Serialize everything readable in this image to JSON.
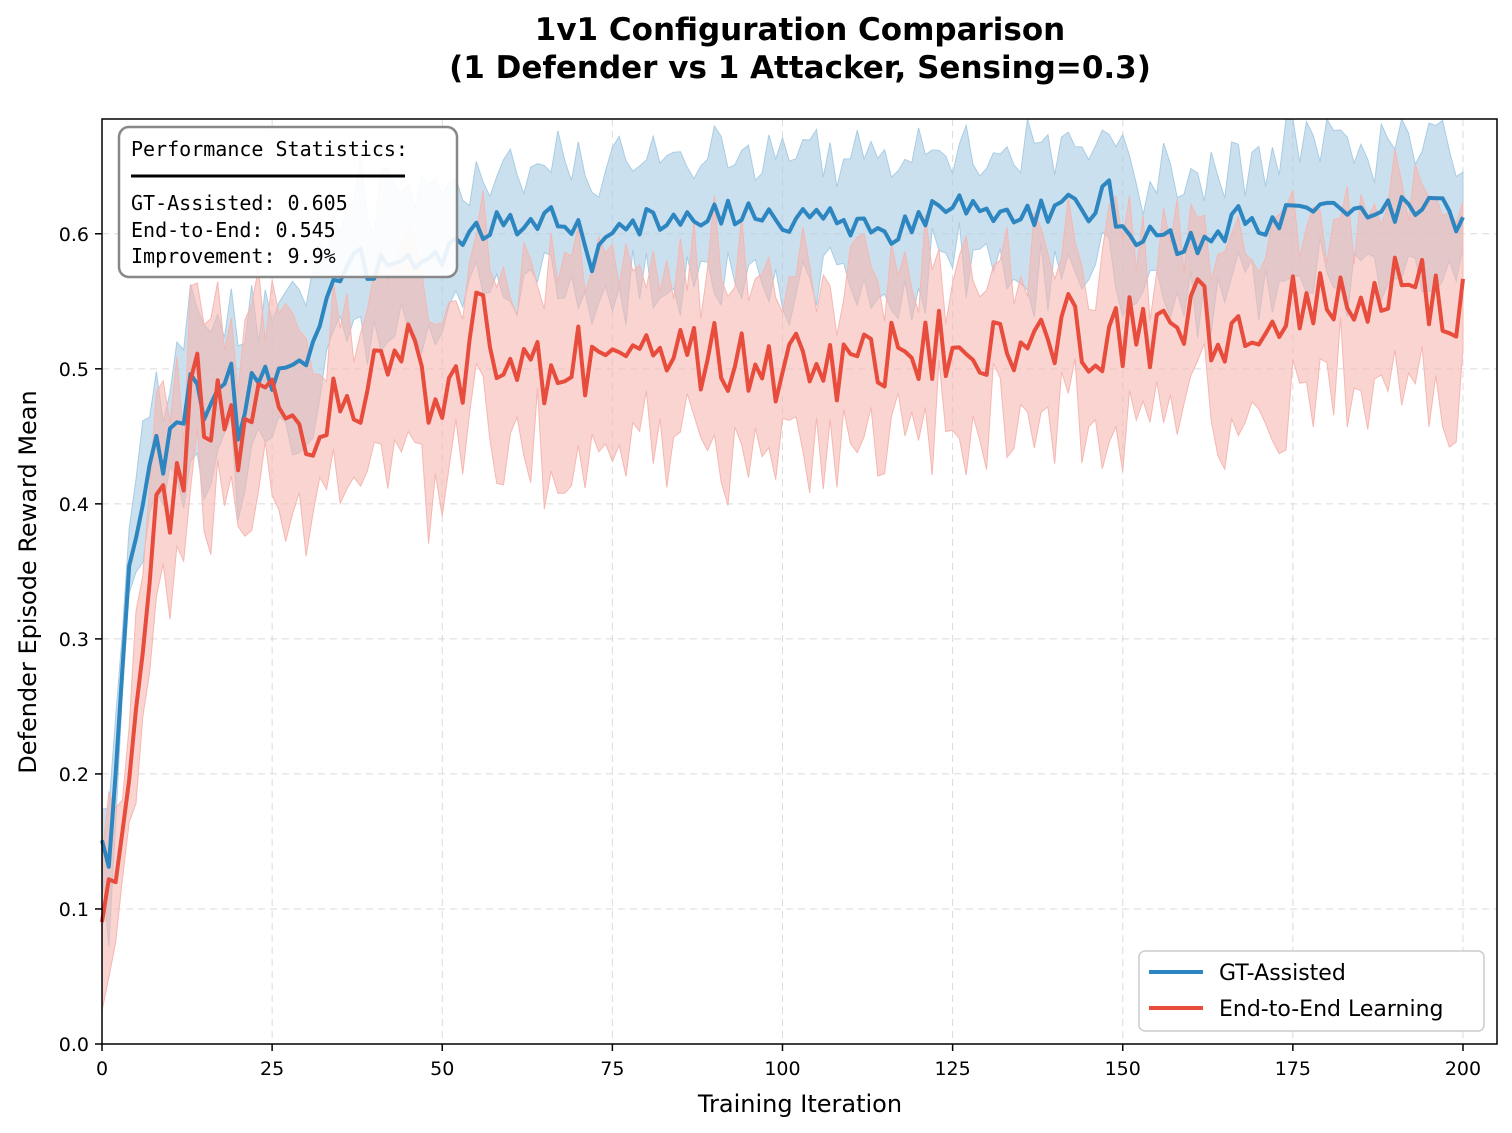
{
  "chart_data": {
    "type": "line",
    "title_line1": "1v1 Configuration Comparison",
    "title_line2": "(1 Defender vs 1 Attacker, Sensing=0.3)",
    "xlabel": "Training Iteration",
    "ylabel": "Defender Episode Reward Mean",
    "xlim": [
      0,
      205
    ],
    "ylim": [
      0,
      0.685
    ],
    "xticks": [
      0,
      25,
      50,
      75,
      100,
      125,
      150,
      175,
      200
    ],
    "yticks": [
      0.0,
      0.1,
      0.2,
      0.3,
      0.4,
      0.5,
      0.6
    ],
    "ytick_labels": [
      "0.0",
      "0.1",
      "0.2",
      "0.3",
      "0.4",
      "0.5",
      "0.6"
    ],
    "grid": true,
    "legend_position": "lower-right",
    "stats_box": {
      "header": "Performance Statistics:",
      "line1": "GT-Assisted: 0.605",
      "line2": "End-to-End: 0.545",
      "line3": "Improvement: 9.9%"
    },
    "series": [
      {
        "name": "GT-Assisted",
        "color": "#2e86c1",
        "band_color": "#a9cce3",
        "keypoints": [
          [
            0,
            0.155
          ],
          [
            1,
            0.13
          ],
          [
            2,
            0.2
          ],
          [
            4,
            0.35
          ],
          [
            6,
            0.4
          ],
          [
            8,
            0.455
          ],
          [
            9,
            0.43
          ],
          [
            10,
            0.46
          ],
          [
            12,
            0.47
          ],
          [
            13,
            0.5
          ],
          [
            15,
            0.47
          ],
          [
            17,
            0.48
          ],
          [
            19,
            0.5
          ],
          [
            20,
            0.45
          ],
          [
            22,
            0.5
          ],
          [
            25,
            0.49
          ],
          [
            28,
            0.5
          ],
          [
            30,
            0.5
          ],
          [
            33,
            0.555
          ],
          [
            35,
            0.56
          ],
          [
            38,
            0.585
          ],
          [
            40,
            0.57
          ],
          [
            43,
            0.585
          ],
          [
            46,
            0.575
          ],
          [
            48,
            0.59
          ],
          [
            50,
            0.585
          ],
          [
            53,
            0.6
          ],
          [
            55,
            0.6
          ],
          [
            57,
            0.61
          ],
          [
            60,
            0.61
          ],
          [
            63,
            0.605
          ],
          [
            65,
            0.61
          ],
          [
            70,
            0.605
          ],
          [
            72,
            0.58
          ],
          [
            75,
            0.6
          ],
          [
            80,
            0.61
          ],
          [
            85,
            0.61
          ],
          [
            90,
            0.615
          ],
          [
            95,
            0.615
          ],
          [
            100,
            0.61
          ],
          [
            105,
            0.615
          ],
          [
            110,
            0.605
          ],
          [
            115,
            0.6
          ],
          [
            120,
            0.615
          ],
          [
            125,
            0.62
          ],
          [
            130,
            0.61
          ],
          [
            135,
            0.615
          ],
          [
            140,
            0.62
          ],
          [
            145,
            0.615
          ],
          [
            148,
            0.63
          ],
          [
            150,
            0.6
          ],
          [
            153,
            0.59
          ],
          [
            155,
            0.6
          ],
          [
            160,
            0.59
          ],
          [
            163,
            0.595
          ],
          [
            167,
            0.61
          ],
          [
            170,
            0.605
          ],
          [
            175,
            0.615
          ],
          [
            180,
            0.615
          ],
          [
            185,
            0.61
          ],
          [
            190,
            0.615
          ],
          [
            195,
            0.625
          ],
          [
            198,
            0.615
          ],
          [
            200,
            0.605
          ]
        ],
        "noise": 0.011,
        "band_width": 0.045
      },
      {
        "name": "End-to-End Learning",
        "color": "#e74c3c",
        "band_color": "#f5b7b1",
        "keypoints": [
          [
            0,
            0.09
          ],
          [
            1,
            0.12
          ],
          [
            2,
            0.115
          ],
          [
            4,
            0.2
          ],
          [
            6,
            0.3
          ],
          [
            8,
            0.39
          ],
          [
            10,
            0.405
          ],
          [
            12,
            0.43
          ],
          [
            13,
            0.5
          ],
          [
            15,
            0.47
          ],
          [
            18,
            0.47
          ],
          [
            20,
            0.44
          ],
          [
            23,
            0.47
          ],
          [
            25,
            0.5
          ],
          [
            28,
            0.45
          ],
          [
            30,
            0.44
          ],
          [
            32,
            0.47
          ],
          [
            35,
            0.465
          ],
          [
            38,
            0.475
          ],
          [
            42,
            0.5
          ],
          [
            45,
            0.51
          ],
          [
            47,
            0.48
          ],
          [
            50,
            0.49
          ],
          [
            53,
            0.49
          ],
          [
            56,
            0.565
          ],
          [
            58,
            0.49
          ],
          [
            60,
            0.5
          ],
          [
            63,
            0.51
          ],
          [
            65,
            0.49
          ],
          [
            70,
            0.51
          ],
          [
            75,
            0.5
          ],
          [
            80,
            0.51
          ],
          [
            85,
            0.505
          ],
          [
            90,
            0.51
          ],
          [
            95,
            0.505
          ],
          [
            100,
            0.5
          ],
          [
            105,
            0.5
          ],
          [
            110,
            0.495
          ],
          [
            115,
            0.505
          ],
          [
            120,
            0.52
          ],
          [
            125,
            0.515
          ],
          [
            130,
            0.51
          ],
          [
            135,
            0.52
          ],
          [
            140,
            0.53
          ],
          [
            145,
            0.525
          ],
          [
            150,
            0.525
          ],
          [
            155,
            0.53
          ],
          [
            160,
            0.55
          ],
          [
            165,
            0.51
          ],
          [
            170,
            0.535
          ],
          [
            175,
            0.545
          ],
          [
            180,
            0.55
          ],
          [
            185,
            0.54
          ],
          [
            190,
            0.555
          ],
          [
            193,
            0.565
          ],
          [
            196,
            0.555
          ],
          [
            200,
            0.545
          ]
        ],
        "noise": 0.028,
        "band_width": 0.06
      }
    ]
  }
}
